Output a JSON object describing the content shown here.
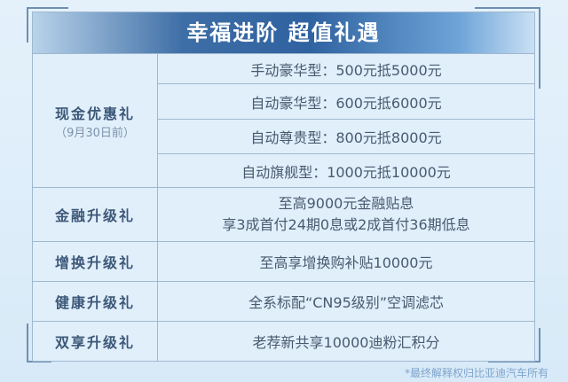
{
  "title": "幸福进阶 超值礼遇",
  "cash": {
    "label": "现金优惠礼",
    "note": "（9月30日前）",
    "items": [
      "手动豪华型：500元抵5000元",
      "自动豪华型：600元抵6000元",
      "自动尊贵型：800元抵8000元",
      "自动旗舰型：1000元抵10000元"
    ]
  },
  "rows": [
    {
      "label": "金融升级礼",
      "lines": [
        "至高9000元金融贴息",
        "享3成首付24期0息或2成首付36期低息"
      ]
    },
    {
      "label": "增换升级礼",
      "lines": [
        "至高享增换购补贴10000元"
      ]
    },
    {
      "label": "健康升级礼",
      "lines": [
        "全系标配“CN95级别”空调滤芯"
      ]
    },
    {
      "label": "双享升级礼",
      "lines": [
        "老荐新共享10000迪粉汇积分"
      ]
    }
  ],
  "footer": "*最终解释权归比亚迪汽车所有"
}
